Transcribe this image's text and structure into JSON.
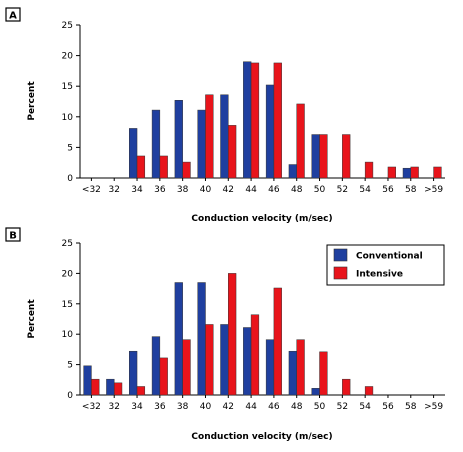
{
  "colors": {
    "conventional": "#1f3f9f",
    "intensive": "#e8141b",
    "stroke": "#333333"
  },
  "legend": {
    "conventional": "Conventional",
    "intensive": "Intensive"
  },
  "chart_data": [
    {
      "panel": "A",
      "type": "bar",
      "xlabel": "Conduction velocity (m/sec)",
      "ylabel": "Percent",
      "ylim": [
        0,
        25
      ],
      "yticks": [
        0,
        5,
        10,
        15,
        20,
        25
      ],
      "categories": [
        "<32",
        "32",
        "34",
        "36",
        "38",
        "40",
        "42",
        "44",
        "46",
        "48",
        "50",
        "52",
        "54",
        "56",
        "58",
        ">59"
      ],
      "series": [
        {
          "key": "conventional",
          "values": [
            0,
            0,
            8.1,
            11.1,
            12.7,
            11.1,
            13.6,
            19.0,
            15.2,
            2.2,
            7.1,
            0,
            0,
            0,
            1.6,
            0
          ]
        },
        {
          "key": "intensive",
          "values": [
            0,
            0,
            3.6,
            3.6,
            2.6,
            13.6,
            8.6,
            18.8,
            18.8,
            12.1,
            7.1,
            7.1,
            2.6,
            1.8,
            1.8,
            1.8
          ]
        }
      ],
      "grid": false
    },
    {
      "panel": "B",
      "type": "bar",
      "xlabel": "Conduction velocity (m/sec)",
      "ylabel": "Percent",
      "ylim": [
        0,
        25
      ],
      "yticks": [
        0,
        5,
        10,
        15,
        20,
        25
      ],
      "categories": [
        "<32",
        "32",
        "34",
        "36",
        "38",
        "40",
        "42",
        "44",
        "46",
        "48",
        "50",
        "52",
        "54",
        "56",
        "58",
        ">59"
      ],
      "series": [
        {
          "key": "conventional",
          "values": [
            4.8,
            2.6,
            7.2,
            9.6,
            18.5,
            18.5,
            11.6,
            11.1,
            9.1,
            7.2,
            1.1,
            0,
            0,
            0,
            0,
            0
          ]
        },
        {
          "key": "intensive",
          "values": [
            2.6,
            2.0,
            1.4,
            6.1,
            9.1,
            11.6,
            20.0,
            13.2,
            17.6,
            9.1,
            7.1,
            2.6,
            1.4,
            0,
            0,
            0
          ]
        }
      ],
      "grid": false,
      "legend_position": "top-right"
    }
  ]
}
